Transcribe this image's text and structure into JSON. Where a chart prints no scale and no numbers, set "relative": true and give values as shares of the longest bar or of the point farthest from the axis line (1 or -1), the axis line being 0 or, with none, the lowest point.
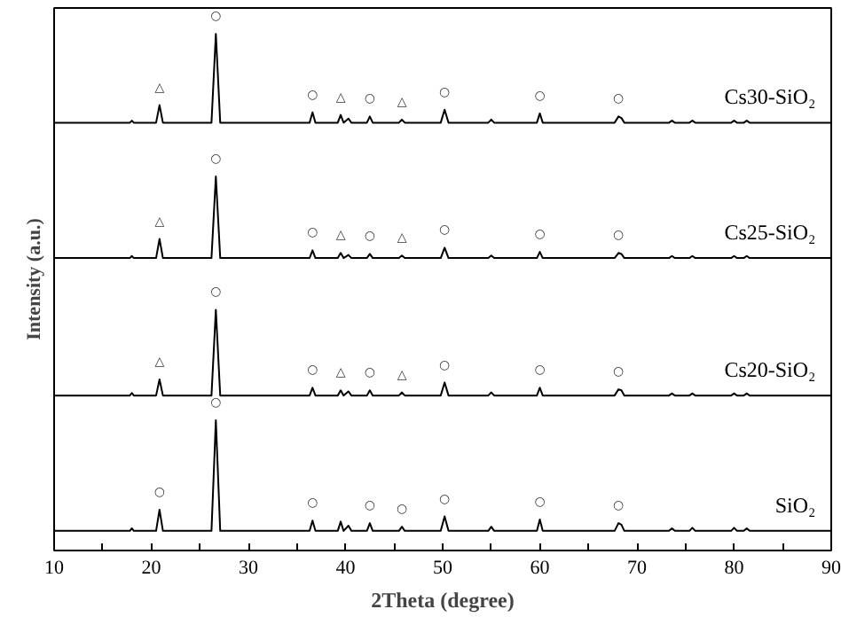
{
  "chart_data": {
    "type": "line",
    "relative": true,
    "xlabel": "2Theta (degree)",
    "ylabel": "Intensity (a.u.)",
    "tick_labels": "x",
    "grid": false,
    "marker": "none",
    "line_style": "solid",
    "xlim": [
      10,
      90
    ],
    "xticks": [
      10,
      {
        "value": 15,
        "label": null
      },
      20,
      {
        "value": 25,
        "label": null
      },
      30,
      {
        "value": 35,
        "label": null
      },
      40,
      {
        "value": 45,
        "label": null
      },
      50,
      {
        "value": 55,
        "label": null
      },
      60,
      {
        "value": 65,
        "label": null
      },
      70,
      {
        "value": 75,
        "label": null
      },
      80,
      {
        "value": 85,
        "label": null
      },
      90
    ],
    "x": [
      10,
      17.8,
      18,
      18.2,
      20.5,
      20.85,
      21.2,
      26.2,
      26.65,
      27.1,
      36.3,
      36.6,
      36.9,
      39.2,
      39.5,
      39.8,
      40.3,
      40.6,
      42.2,
      42.5,
      42.8,
      45.5,
      45.8,
      46.1,
      49.8,
      50.2,
      50.6,
      54.7,
      55,
      55.3,
      59.7,
      60,
      60.3,
      67.7,
      68.1,
      68.4,
      68.7,
      73.3,
      73.6,
      73.9,
      75.4,
      75.7,
      76,
      79.7,
      80,
      80.3,
      81,
      81.3,
      81.6,
      90
    ],
    "series": [
      {
        "name": "Cs30-SiO₂",
        "color": "#000000",
        "values": [
          0.828,
          0.828,
          0.832,
          0.828,
          0.828,
          0.862,
          0.828,
          0.828,
          1.0,
          0.828,
          0.828,
          0.848,
          0.828,
          0.828,
          0.843,
          0.828,
          0.836,
          0.828,
          0.828,
          0.84,
          0.828,
          0.828,
          0.834,
          0.828,
          0.828,
          0.853,
          0.828,
          0.828,
          0.834,
          0.828,
          0.828,
          0.846,
          0.828,
          0.828,
          0.84,
          0.837,
          0.828,
          0.828,
          0.832,
          0.828,
          0.828,
          0.832,
          0.828,
          0.828,
          0.832,
          0.828,
          0.828,
          0.832,
          0.828,
          0.828
        ]
      },
      {
        "name": "Cs25-SiO₂",
        "color": "#000000",
        "values": [
          0.566,
          0.566,
          0.57,
          0.566,
          0.566,
          0.603,
          0.566,
          0.566,
          0.724,
          0.566,
          0.566,
          0.581,
          0.566,
          0.566,
          0.576,
          0.566,
          0.572,
          0.566,
          0.566,
          0.574,
          0.566,
          0.566,
          0.571,
          0.566,
          0.566,
          0.586,
          0.566,
          0.566,
          0.571,
          0.566,
          0.566,
          0.578,
          0.566,
          0.566,
          0.576,
          0.574,
          0.566,
          0.566,
          0.57,
          0.566,
          0.566,
          0.57,
          0.566,
          0.566,
          0.57,
          0.566,
          0.566,
          0.57,
          0.566,
          0.566
        ]
      },
      {
        "name": "Cs20-SiO₂",
        "color": "#000000",
        "values": [
          0.3,
          0.3,
          0.305,
          0.3,
          0.3,
          0.331,
          0.3,
          0.3,
          0.466,
          0.3,
          0.3,
          0.315,
          0.3,
          0.3,
          0.31,
          0.3,
          0.308,
          0.3,
          0.3,
          0.31,
          0.3,
          0.3,
          0.306,
          0.3,
          0.3,
          0.325,
          0.3,
          0.3,
          0.306,
          0.3,
          0.3,
          0.315,
          0.3,
          0.3,
          0.312,
          0.31,
          0.3,
          0.3,
          0.304,
          0.3,
          0.3,
          0.304,
          0.3,
          0.3,
          0.304,
          0.3,
          0.3,
          0.304,
          0.3,
          0.3
        ]
      },
      {
        "name": "SiO₂",
        "color": "#000000",
        "values": [
          0.038,
          0.038,
          0.043,
          0.038,
          0.038,
          0.079,
          0.038,
          0.038,
          0.252,
          0.038,
          0.038,
          0.058,
          0.038,
          0.038,
          0.056,
          0.038,
          0.048,
          0.038,
          0.038,
          0.053,
          0.038,
          0.038,
          0.046,
          0.038,
          0.038,
          0.066,
          0.038,
          0.038,
          0.046,
          0.038,
          0.038,
          0.06,
          0.038,
          0.038,
          0.053,
          0.05,
          0.038,
          0.038,
          0.043,
          0.038,
          0.038,
          0.044,
          0.038,
          0.038,
          0.044,
          0.038,
          0.038,
          0.043,
          0.038,
          0.038
        ]
      }
    ],
    "annotations": [
      {
        "text": "△",
        "x": 20.85,
        "y": 0.862
      },
      {
        "text": "○",
        "x": 26.65,
        "y": 1.0
      },
      {
        "text": "○",
        "x": 36.6,
        "y": 0.848
      },
      {
        "text": "△",
        "x": 39.5,
        "y": 0.843
      },
      {
        "text": "○",
        "x": 42.5,
        "y": 0.84
      },
      {
        "text": "△",
        "x": 45.8,
        "y": 0.834
      },
      {
        "text": "○",
        "x": 50.2,
        "y": 0.853
      },
      {
        "text": "○",
        "x": 60,
        "y": 0.846
      },
      {
        "text": "○",
        "x": 68.1,
        "y": 0.84
      },
      {
        "text": "△",
        "x": 20.85,
        "y": 0.603
      },
      {
        "text": "○",
        "x": 26.65,
        "y": 0.724
      },
      {
        "text": "○",
        "x": 36.6,
        "y": 0.581
      },
      {
        "text": "△",
        "x": 39.5,
        "y": 0.576
      },
      {
        "text": "○",
        "x": 42.5,
        "y": 0.574
      },
      {
        "text": "△",
        "x": 45.8,
        "y": 0.571
      },
      {
        "text": "○",
        "x": 50.2,
        "y": 0.586
      },
      {
        "text": "○",
        "x": 60,
        "y": 0.578
      },
      {
        "text": "○",
        "x": 68.1,
        "y": 0.576
      },
      {
        "text": "△",
        "x": 20.85,
        "y": 0.331
      },
      {
        "text": "○",
        "x": 26.65,
        "y": 0.466
      },
      {
        "text": "○",
        "x": 36.6,
        "y": 0.315
      },
      {
        "text": "△",
        "x": 39.5,
        "y": 0.31
      },
      {
        "text": "○",
        "x": 42.5,
        "y": 0.31
      },
      {
        "text": "△",
        "x": 45.8,
        "y": 0.306
      },
      {
        "text": "○",
        "x": 50.2,
        "y": 0.325
      },
      {
        "text": "○",
        "x": 60,
        "y": 0.315
      },
      {
        "text": "○",
        "x": 68.1,
        "y": 0.312
      },
      {
        "text": "○",
        "x": 20.85,
        "y": 0.079
      },
      {
        "text": "○",
        "x": 26.65,
        "y": 0.252
      },
      {
        "text": "○",
        "x": 36.6,
        "y": 0.058
      },
      {
        "text": "○",
        "x": 42.5,
        "y": 0.053
      },
      {
        "text": "○",
        "x": 45.8,
        "y": 0.046
      },
      {
        "text": "○",
        "x": 50.2,
        "y": 0.066
      },
      {
        "text": "○",
        "x": 60,
        "y": 0.06
      },
      {
        "text": "○",
        "x": 68.1,
        "y": 0.053
      }
    ]
  }
}
